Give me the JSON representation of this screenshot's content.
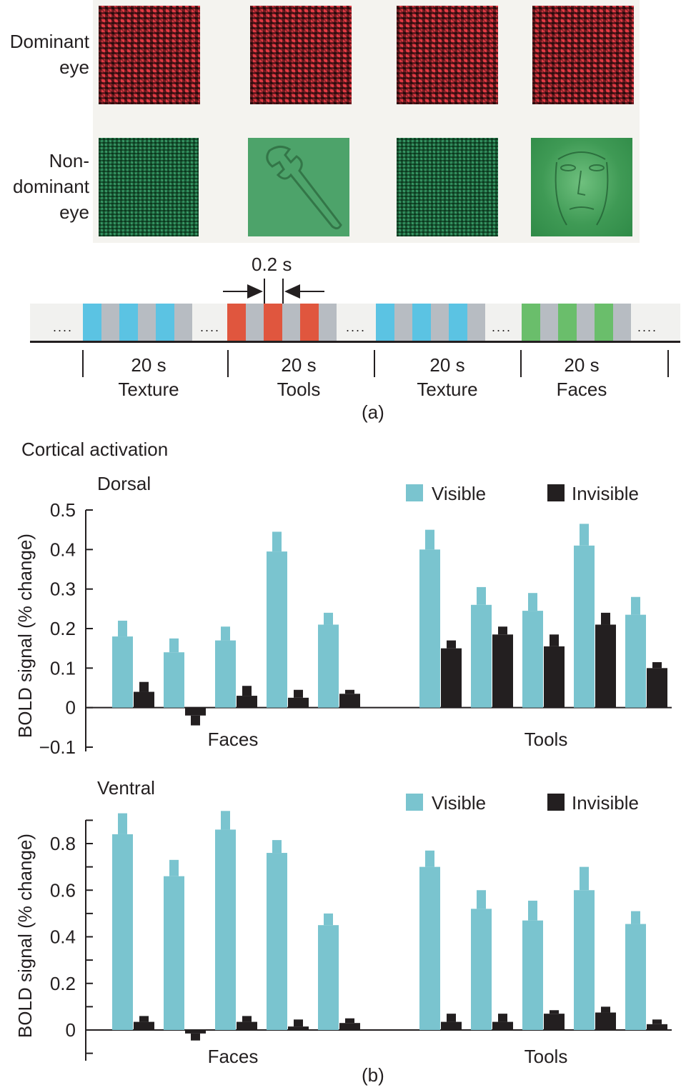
{
  "panel_a": {
    "dominant_label": [
      "Dominant",
      "eye"
    ],
    "nondominant_label": [
      "Non-",
      "dominant",
      "eye"
    ],
    "interval_label": "0.2 s",
    "dots": "....",
    "blocks": [
      {
        "duration": "20 s",
        "name": "Texture"
      },
      {
        "duration": "20 s",
        "name": "Tools"
      },
      {
        "duration": "20 s",
        "name": "Texture"
      },
      {
        "duration": "20 s",
        "name": "Faces"
      }
    ],
    "caption": "(a)",
    "colors": {
      "texture": "#5bc3e3",
      "tools": "#e0563e",
      "faces": "#6abe6b",
      "gray": "#b7bcc2"
    }
  },
  "panel_b": {
    "section_title": "Cortical activation",
    "caption": "(b)"
  },
  "chart_data": [
    {
      "type": "bar",
      "title": "Dorsal",
      "ylabel": "BOLD signal (% change)",
      "ylim": [
        -0.1,
        0.5
      ],
      "yticks": [
        "0.5",
        "0.4",
        "0.3",
        "0.2",
        "0.1",
        "0",
        "−0.1"
      ],
      "groups": [
        "Faces",
        "Tools"
      ],
      "legend": {
        "visible": "Visible",
        "invisible": "Invisible"
      },
      "colors": {
        "visible": "#7ac4cf",
        "invisible": "#231f20"
      },
      "series": [
        {
          "name": "Visible",
          "Faces": [
            0.18,
            0.14,
            0.17,
            0.395,
            0.21
          ],
          "Tools": [
            0.4,
            0.26,
            0.245,
            0.41,
            0.235
          ],
          "error_top": {
            "Faces": [
              0.22,
              0.175,
              0.205,
              0.445,
              0.24
            ],
            "Tools": [
              0.45,
              0.305,
              0.29,
              0.465,
              0.28
            ]
          }
        },
        {
          "name": "Invisible",
          "Faces": [
            0.04,
            -0.02,
            0.03,
            0.025,
            0.035
          ],
          "Tools": [
            0.15,
            0.185,
            0.155,
            0.21,
            0.1
          ],
          "error_top": {
            "Faces": [
              0.065,
              -0.045,
              0.055,
              0.045,
              0.045
            ],
            "Tools": [
              0.17,
              0.205,
              0.185,
              0.24,
              0.115
            ]
          }
        }
      ]
    },
    {
      "type": "bar",
      "title": "Ventral",
      "ylabel": "BOLD signal (% change)",
      "ylim": [
        -0.1,
        0.9
      ],
      "yticks": [
        "0.8",
        "0.6",
        "0.4",
        "0.2",
        "0"
      ],
      "groups": [
        "Faces",
        "Tools"
      ],
      "legend": {
        "visible": "Visible",
        "invisible": "Invisible"
      },
      "colors": {
        "visible": "#7ac4cf",
        "invisible": "#231f20"
      },
      "series": [
        {
          "name": "Visible",
          "Faces": [
            0.84,
            0.66,
            0.86,
            0.76,
            0.45
          ],
          "Tools": [
            0.7,
            0.52,
            0.47,
            0.6,
            0.455
          ],
          "error_top": {
            "Faces": [
              0.93,
              0.73,
              0.94,
              0.815,
              0.5
            ],
            "Tools": [
              0.77,
              0.6,
              0.555,
              0.7,
              0.51
            ]
          }
        },
        {
          "name": "Invisible",
          "Faces": [
            0.035,
            -0.015,
            0.035,
            0.015,
            0.03
          ],
          "Tools": [
            0.035,
            0.035,
            0.07,
            0.075,
            0.025
          ],
          "error_top": {
            "Faces": [
              0.06,
              -0.045,
              0.06,
              0.045,
              0.05
            ],
            "Tools": [
              0.07,
              0.07,
              0.085,
              0.1,
              0.045
            ]
          }
        }
      ]
    }
  ]
}
